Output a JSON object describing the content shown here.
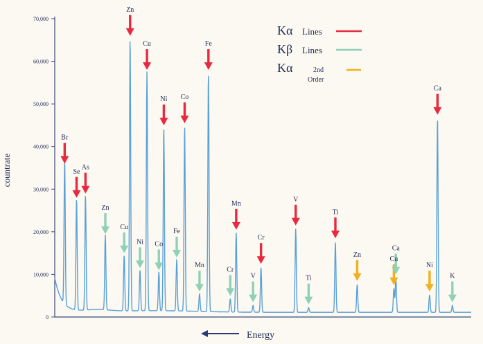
{
  "chart_data": {
    "type": "line",
    "title": "",
    "xlabel": "Energy",
    "ylabel": "countrate",
    "ylim": [
      0,
      70000
    ],
    "y_ticks": [
      "0",
      "10,000",
      "20,000",
      "30,000",
      "40,000",
      "50,000",
      "60,000",
      "70,000"
    ],
    "grid": false,
    "legend_position": "top-right",
    "colors": {
      "trace": "#5aa0d6",
      "ka": "#e8293f",
      "kb": "#8fd1b5",
      "ka2": "#f2b01e",
      "axis": "#3a4a7a",
      "text": "#1f2a55"
    },
    "legend": [
      {
        "symbol": "Kα",
        "label": "Lines",
        "color": "#e8293f"
      },
      {
        "symbol": "Kβ",
        "label": "Lines",
        "color": "#8fd1b5"
      },
      {
        "symbol": "Kα",
        "label": "2nd Order",
        "color": "#f2b01e"
      }
    ],
    "peaks": [
      {
        "element": "Br",
        "type": "Kα",
        "x": 1.0,
        "y": 35000
      },
      {
        "element": "Se",
        "type": "Kα",
        "x": 2.2,
        "y": 27000
      },
      {
        "element": "As",
        "type": "Kα",
        "x": 3.1,
        "y": 28000
      },
      {
        "element": "Zn",
        "type": "Kβ",
        "x": 5.1,
        "y": 18500
      },
      {
        "element": "Cu",
        "type": "Kβ",
        "x": 7.0,
        "y": 14000
      },
      {
        "element": "Zn",
        "type": "Kα",
        "x": 7.6,
        "y": 65000
      },
      {
        "element": "Ni",
        "type": "Kβ",
        "x": 8.6,
        "y": 10500
      },
      {
        "element": "Cu",
        "type": "Kα",
        "x": 9.3,
        "y": 57000
      },
      {
        "element": "Co",
        "type": "Kβ",
        "x": 10.5,
        "y": 10000
      },
      {
        "element": "Ni",
        "type": "Kα",
        "x": 11.0,
        "y": 44000
      },
      {
        "element": "Fe",
        "type": "Kβ",
        "x": 12.3,
        "y": 13000
      },
      {
        "element": "Co",
        "type": "Kα",
        "x": 13.1,
        "y": 44500
      },
      {
        "element": "Mn",
        "type": "Kβ",
        "x": 14.6,
        "y": 5000
      },
      {
        "element": "Fe",
        "type": "Kα",
        "x": 15.5,
        "y": 57000
      },
      {
        "element": "Cr",
        "type": "Kβ",
        "x": 17.7,
        "y": 4000
      },
      {
        "element": "Mn",
        "type": "Kα",
        "x": 18.3,
        "y": 19500
      },
      {
        "element": "V",
        "type": "Kβ",
        "x": 20.0,
        "y": 2500
      },
      {
        "element": "Cr",
        "type": "Kα",
        "x": 20.8,
        "y": 11500
      },
      {
        "element": "V",
        "type": "Kα",
        "x": 24.3,
        "y": 20500
      },
      {
        "element": "Ti",
        "type": "Kβ",
        "x": 25.6,
        "y": 2000
      },
      {
        "element": "Ti",
        "type": "Kα",
        "x": 28.3,
        "y": 17500
      },
      {
        "element": "Zn",
        "type": "Kα 2nd order",
        "x": 30.5,
        "y": 7500
      },
      {
        "element": "Cu",
        "type": "Kα 2nd order",
        "x": 34.2,
        "y": 6500
      },
      {
        "element": "Ca",
        "type": "Kβ",
        "x": 34.4,
        "y": 9000
      },
      {
        "element": "Ni",
        "type": "Kα 2nd order",
        "x": 37.8,
        "y": 5000
      },
      {
        "element": "Ca",
        "type": "Kα",
        "x": 38.6,
        "y": 46500
      },
      {
        "element": "K",
        "type": "Kβ",
        "x": 40.1,
        "y": 2500
      }
    ]
  }
}
